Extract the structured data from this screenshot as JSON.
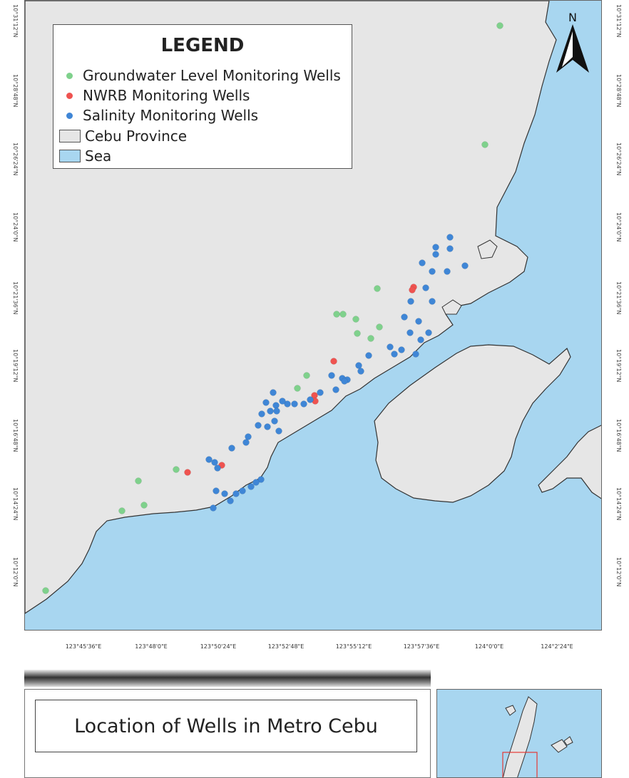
{
  "legend": {
    "title": "LEGEND",
    "items": [
      {
        "label": "Groundwater Level Monitoring Wells",
        "symbol": "dot",
        "color": "#7fd18c"
      },
      {
        "label": "NWRB Monitoring Wells",
        "symbol": "dot",
        "color": "#ef5350"
      },
      {
        "label": "Salinity Monitoring Wells",
        "symbol": "dot",
        "color": "#3f86d6"
      },
      {
        "label": "Cebu Province",
        "symbol": "box",
        "color": "#e6e6e6"
      },
      {
        "label": "Sea",
        "symbol": "box",
        "color": "#a8d6f0"
      }
    ]
  },
  "north_arrow": {
    "label": "N"
  },
  "latitude_labels_left": [
    "10°31'12\"N",
    "10°28'48\"N",
    "10°26'24\"N",
    "10°24'0\"N",
    "10°21'36\"N",
    "10°19'12\"N",
    "10°16'48\"N",
    "10°14'24\"N",
    "10°12'0\"N"
  ],
  "latitude_labels_right": [
    "10°31'12\"N",
    "10°28'48\"N",
    "10°26'24\"N",
    "10°24'0\"N",
    "10°21'36\"N",
    "10°19'12\"N",
    "10°16'48\"N",
    "10°14'24\"N",
    "10°12'0\"N"
  ],
  "longitude_labels": [
    "123°45'36\"E",
    "123°48'0\"E",
    "123°50'24\"E",
    "123°52'48\"E",
    "123°55'12\"E",
    "123°57'36\"E",
    "124°0'0\"E",
    "124°2'24\"E"
  ],
  "title": "Location of Wells in Metro Cebu",
  "colors": {
    "land": "#e6e6e6",
    "sea": "#a8d6f0",
    "groundwater": "#7fd18c",
    "nwrb": "#ef5350",
    "salinity": "#3f86d6"
  }
}
